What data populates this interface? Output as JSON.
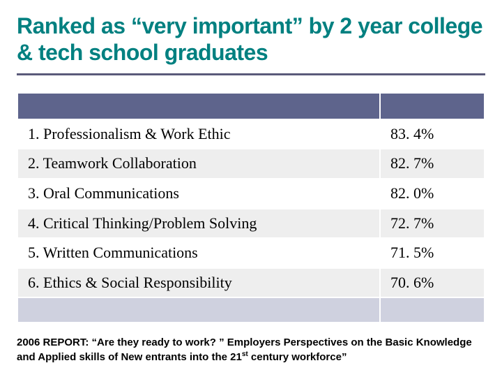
{
  "title": "Ranked as “very important” by 2 year college & tech school graduates",
  "table": {
    "header_bg": "#5e648c",
    "footer_bg": "#cfd1df",
    "alt_row_bg": "#eeeeee",
    "border_color": "#ffffff",
    "rows": [
      {
        "label": "1. Professionalism & Work Ethic",
        "value": "83. 4%"
      },
      {
        "label": "2. Teamwork Collaboration",
        "value": "82. 7%"
      },
      {
        "label": "3. Oral Communications",
        "value": "82. 0%"
      },
      {
        "label": "4. Critical Thinking/Problem Solving",
        "value": "72. 7%"
      },
      {
        "label": "5. Written Communications",
        "value": "71. 5%"
      },
      {
        "label": "6. Ethics & Social Responsibility",
        "value": "70. 6%"
      }
    ]
  },
  "footnote_prefix": "2006 REPORT: “Are they ready to work? ” Employers Perspectives on the Basic Knowledge and Applied skills of New entrants into the 21",
  "footnote_sup": "st",
  "footnote_suffix": " century workforce”",
  "colors": {
    "title": "#008080",
    "title_underline": "#5a5a7a",
    "text": "#000000",
    "background": "#ffffff"
  },
  "typography": {
    "title_fontsize": 32,
    "row_fontsize": 22,
    "footnote_fontsize": 15
  }
}
